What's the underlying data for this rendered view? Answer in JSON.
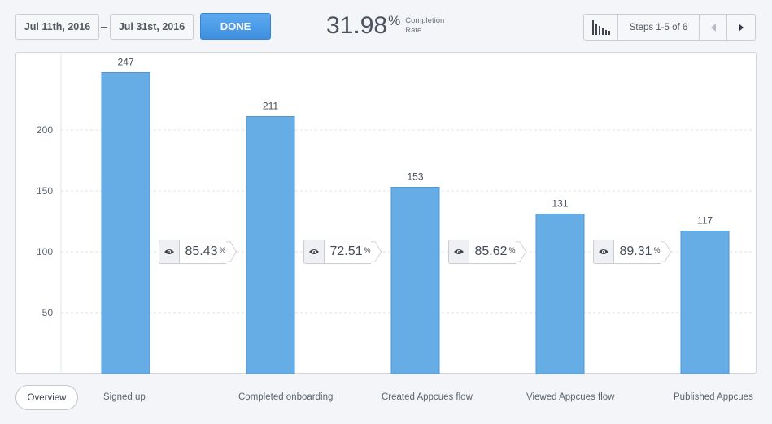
{
  "header": {
    "date_start": "Jul 11th, 2016",
    "date_separator": "–",
    "date_end": "Jul 31st, 2016",
    "done_label": "DONE",
    "completion_rate_value": "31.98",
    "completion_rate_unit": "%",
    "completion_rate_label_line1": "Completion",
    "completion_rate_label_line2": "Rate",
    "steps_label": "Steps 1-5 of 6",
    "chart_icon": "bar-chart-icon",
    "prev_icon": "triangle-left-icon",
    "next_icon": "triangle-right-icon"
  },
  "chart_data": {
    "type": "bar",
    "categories": [
      "Signed up",
      "Completed onboarding",
      "Created Appcues flow",
      "Viewed Appcues flow",
      "Published Appcues"
    ],
    "values": [
      247,
      211,
      153,
      131,
      117
    ],
    "y_ticks": [
      50,
      100,
      150,
      200
    ],
    "ylim": [
      0,
      270
    ],
    "grid": true,
    "bar_color": "#66ade6",
    "conversion_rates": [
      "85.43",
      "72.51",
      "85.62",
      "89.31"
    ],
    "conversion_unit": "%",
    "conversion_icon": "eye-icon"
  },
  "footer": {
    "overview_label": "Overview"
  }
}
